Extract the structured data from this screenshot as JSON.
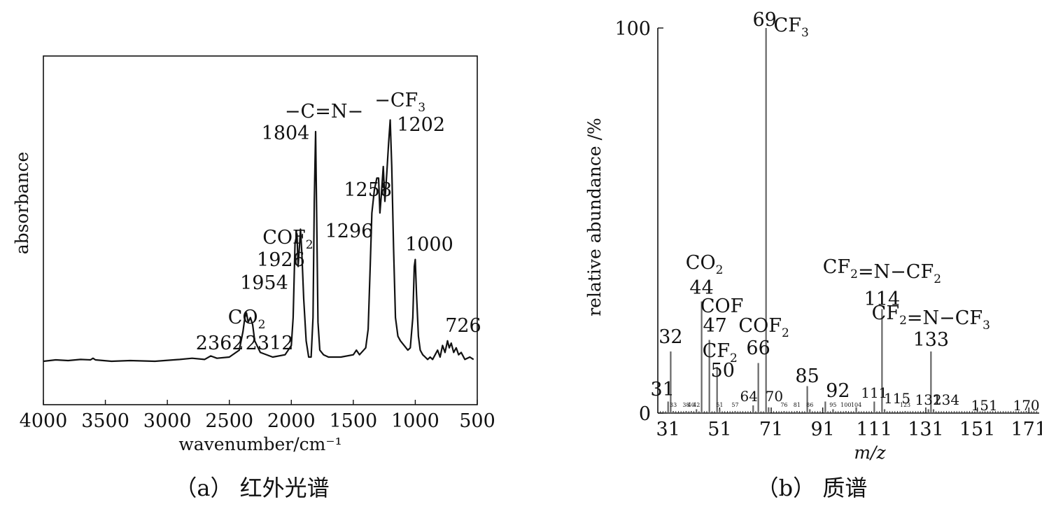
{
  "chart_data": [
    {
      "type": "line",
      "caption": "（a） 红外光谱",
      "xlabel": "wavenumber/cm⁻¹",
      "ylabel": "absorbance",
      "xlim": [
        4000,
        500
      ],
      "x_ticks": [
        "4000",
        "3500",
        "3000",
        "2500",
        "2000",
        "1500",
        "1000",
        "500"
      ],
      "x_reversed": true,
      "grid": false,
      "series": [
        {
          "x": [
            4000,
            3900,
            3800,
            3700,
            3620,
            3600,
            3580,
            3450,
            3300,
            3100,
            2900,
            2800,
            2700,
            2650,
            2600,
            2500,
            2420,
            2390,
            2375,
            2362,
            2348,
            2330,
            2312,
            2295,
            2250,
            2150,
            2050,
            2000,
            1985,
            1970,
            1954,
            1945,
            1935,
            1926,
            1915,
            1900,
            1880,
            1860,
            1840,
            1825,
            1815,
            1804,
            1795,
            1785,
            1770,
            1740,
            1700,
            1600,
            1500,
            1475,
            1450,
            1400,
            1380,
            1365,
            1350,
            1330,
            1310,
            1296,
            1285,
            1275,
            1258,
            1245,
            1230,
            1215,
            1202,
            1190,
            1175,
            1160,
            1140,
            1120,
            1090,
            1060,
            1040,
            1020,
            1008,
            1000,
            990,
            975,
            960,
            940,
            920,
            900,
            880,
            860,
            840,
            820,
            800,
            780,
            760,
            740,
            726,
            710,
            690,
            670,
            650,
            630,
            600,
            560,
            530
          ],
          "y": [
            0.012,
            0.018,
            0.015,
            0.02,
            0.018,
            0.025,
            0.018,
            0.012,
            0.015,
            0.012,
            0.02,
            0.025,
            0.02,
            0.035,
            0.025,
            0.03,
            0.06,
            0.14,
            0.2,
            0.22,
            0.18,
            0.2,
            0.17,
            0.1,
            0.05,
            0.03,
            0.04,
            0.08,
            0.2,
            0.52,
            0.56,
            0.42,
            0.5,
            0.58,
            0.48,
            0.28,
            0.1,
            0.03,
            0.03,
            0.2,
            0.7,
            1.0,
            0.62,
            0.18,
            0.06,
            0.04,
            0.03,
            0.03,
            0.04,
            0.06,
            0.04,
            0.07,
            0.15,
            0.4,
            0.65,
            0.75,
            0.8,
            0.8,
            0.65,
            0.72,
            0.85,
            0.7,
            0.82,
            0.95,
            1.05,
            0.85,
            0.5,
            0.2,
            0.12,
            0.1,
            0.08,
            0.06,
            0.07,
            0.2,
            0.42,
            0.45,
            0.3,
            0.12,
            0.06,
            0.04,
            0.03,
            0.02,
            0.03,
            0.02,
            0.04,
            0.06,
            0.03,
            0.08,
            0.05,
            0.1,
            0.07,
            0.09,
            0.05,
            0.07,
            0.04,
            0.05,
            0.02,
            0.03,
            0.02
          ]
        }
      ],
      "annotations": [
        {
          "x": 2362,
          "text": "2362"
        },
        {
          "x": 2312,
          "text": "2312"
        },
        {
          "x": 2337,
          "text": "CO",
          "sub": "2"
        },
        {
          "x": 1954,
          "text": "1954"
        },
        {
          "x": 1926,
          "text": "1926"
        },
        {
          "x": 1926,
          "text": "COF",
          "sub": "2"
        },
        {
          "x": 1804,
          "text": "1804"
        },
        {
          "x": 1804,
          "text": "−C=N−"
        },
        {
          "x": 1296,
          "text": "1296"
        },
        {
          "x": 1258,
          "text": "1258"
        },
        {
          "x": 1202,
          "text": "1202"
        },
        {
          "x": 1202,
          "text": "−CF",
          "sub": "3"
        },
        {
          "x": 1000,
          "text": "1000"
        },
        {
          "x": 726,
          "text": "726"
        }
      ]
    },
    {
      "type": "bar",
      "caption": "（b） 质谱",
      "xlabel": "m/z",
      "ylabel": "relative abundance /%",
      "xlim": [
        27,
        175
      ],
      "ylim": [
        0,
        100
      ],
      "x_ticks": [
        "31",
        "51",
        "71",
        "91",
        "111",
        "131",
        "151",
        "171"
      ],
      "y_ticks": [
        "0",
        "100"
      ],
      "grid": false,
      "x": [
        31,
        32,
        33,
        38,
        40,
        42,
        44,
        47,
        50,
        51,
        57,
        64,
        66,
        69,
        70,
        76,
        81,
        85,
        86,
        92,
        95,
        100,
        104,
        111,
        114,
        115,
        123,
        132,
        133,
        134,
        151,
        170
      ],
      "values": [
        3,
        16,
        0.5,
        0.5,
        0.5,
        1,
        29,
        19,
        12,
        1,
        0.5,
        2,
        13,
        100,
        1.5,
        0.5,
        0.5,
        7,
        1,
        3,
        1,
        0.5,
        1.5,
        3,
        27,
        1,
        0.5,
        1,
        16,
        1,
        0.5,
        0.5
      ],
      "peak_labels": [
        {
          "mz": 31,
          "text": "31"
        },
        {
          "mz": 32,
          "text": "32"
        },
        {
          "mz": 33,
          "text": "33"
        },
        {
          "mz": 38,
          "text": "38"
        },
        {
          "mz": 40,
          "text": "40"
        },
        {
          "mz": 42,
          "text": "42"
        },
        {
          "mz": 44,
          "text": "44"
        },
        {
          "mz": 47,
          "text": "47"
        },
        {
          "mz": 50,
          "text": "50"
        },
        {
          "mz": 51,
          "text": "51"
        },
        {
          "mz": 57,
          "text": "57"
        },
        {
          "mz": 64,
          "text": "64"
        },
        {
          "mz": 66,
          "text": "66"
        },
        {
          "mz": 69,
          "text": "69"
        },
        {
          "mz": 70,
          "text": "70"
        },
        {
          "mz": 76,
          "text": "76"
        },
        {
          "mz": 81,
          "text": "81"
        },
        {
          "mz": 85,
          "text": "85"
        },
        {
          "mz": 86,
          "text": "86"
        },
        {
          "mz": 92,
          "text": "92"
        },
        {
          "mz": 95,
          "text": "95"
        },
        {
          "mz": 100,
          "text": "100"
        },
        {
          "mz": 104,
          "text": "104"
        },
        {
          "mz": 111,
          "text": "111"
        },
        {
          "mz": 114,
          "text": "114"
        },
        {
          "mz": 115,
          "text": "115"
        },
        {
          "mz": 123,
          "text": "123"
        },
        {
          "mz": 132,
          "text": "132"
        },
        {
          "mz": 133,
          "text": "133"
        },
        {
          "mz": 134,
          "text": "134"
        },
        {
          "mz": 151,
          "text": "151"
        },
        {
          "mz": 170,
          "text": "170"
        }
      ],
      "annotations": [
        {
          "mz": 69,
          "text": "CF",
          "sub": "3"
        },
        {
          "mz": 44,
          "text": "CO",
          "sub": "2"
        },
        {
          "mz": 47,
          "text": "COF"
        },
        {
          "mz": 66,
          "text": "COF",
          "sub": "2"
        },
        {
          "mz": 50,
          "text": "CF",
          "sub": "2"
        },
        {
          "mz": 114,
          "parts": [
            {
              "t": "CF"
            },
            {
              "s": "2"
            },
            {
              "t": "=N−CF"
            },
            {
              "s": "2"
            }
          ]
        },
        {
          "mz": 133,
          "parts": [
            {
              "t": "CF"
            },
            {
              "s": "2"
            },
            {
              "t": "=N−CF"
            },
            {
              "s": "3"
            }
          ]
        }
      ]
    }
  ]
}
